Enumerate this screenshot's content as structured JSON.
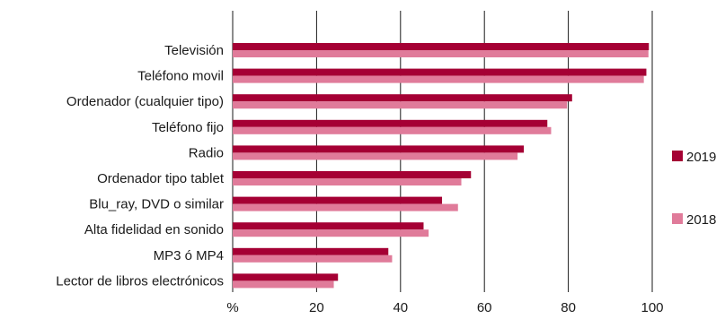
{
  "chart_data": {
    "type": "bar",
    "orientation": "horizontal",
    "categories": [
      "Televisión",
      "Teléfono movil",
      "Ordenador (cualquier tipo)",
      "Teléfono fijo",
      "Radio",
      "Ordenador tipo tablet",
      "Blu_ray, DVD o similar",
      "Alta fidelidad en sonido",
      "MP3 ó MP4",
      "Lector de libros electrónicos"
    ],
    "series": [
      {
        "name": "2019",
        "color": "#a50034",
        "values": [
          99.2,
          98.6,
          80.9,
          75.0,
          69.4,
          56.8,
          49.9,
          45.5,
          37.1,
          25.1
        ]
      },
      {
        "name": "2018",
        "color": "#e07b9a",
        "values": [
          99.1,
          98.0,
          79.7,
          75.9,
          67.9,
          54.5,
          53.7,
          46.7,
          38.0,
          24.1
        ]
      }
    ],
    "xlim": [
      0,
      100
    ],
    "x_ticks": [
      "%",
      "20",
      "40",
      "60",
      "80",
      "100"
    ],
    "grid": true,
    "legend_position": "right"
  }
}
